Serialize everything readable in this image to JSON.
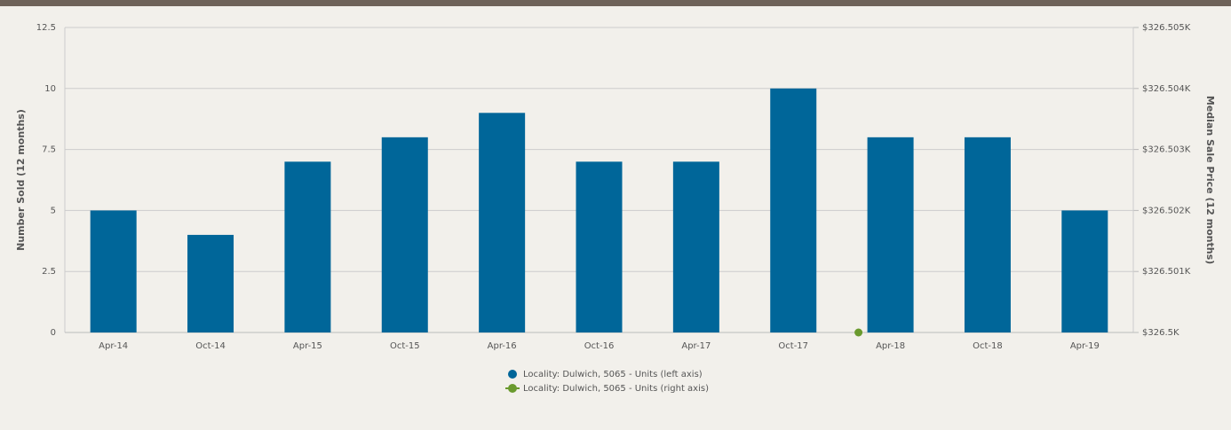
{
  "chart_data": {
    "type": "bar",
    "categories": [
      "Apr-14",
      "Oct-14",
      "Apr-15",
      "Oct-15",
      "Apr-16",
      "Oct-16",
      "Apr-17",
      "Oct-17",
      "Apr-18",
      "Oct-18",
      "Apr-19"
    ],
    "series": [
      {
        "name": "Locality: Dulwich, 5065 - Units (left axis)",
        "color": "#006699",
        "type": "bar",
        "values": [
          5,
          4,
          7,
          8,
          9,
          7,
          7,
          10,
          8,
          8,
          5
        ]
      },
      {
        "name": "Locality: Dulwich, 5065 - Units (right axis)",
        "color": "#6a9a2e",
        "type": "line",
        "axis": "y2",
        "values": [
          null,
          null,
          null,
          null,
          null,
          null,
          null,
          null,
          326500,
          null,
          null
        ]
      }
    ],
    "ylabel": "Number Sold (12 months)",
    "y2label": "Median Sale Price (12 months)",
    "ylim": [
      0,
      12.5
    ],
    "yticks": [
      0,
      2.5,
      5,
      7.5,
      10,
      12.5
    ],
    "y2lim": [
      326500,
      326505
    ],
    "y2ticks": [
      {
        "value": 326500,
        "label": "$326.5K"
      },
      {
        "value": 326501,
        "label": "$326.501K"
      },
      {
        "value": 326502,
        "label": "$326.502K"
      },
      {
        "value": 326503,
        "label": "$326.503K"
      },
      {
        "value": 326504,
        "label": "$326.504K"
      },
      {
        "value": 326505,
        "label": "$326.505K"
      }
    ],
    "grid": true,
    "legend": "bottom"
  }
}
